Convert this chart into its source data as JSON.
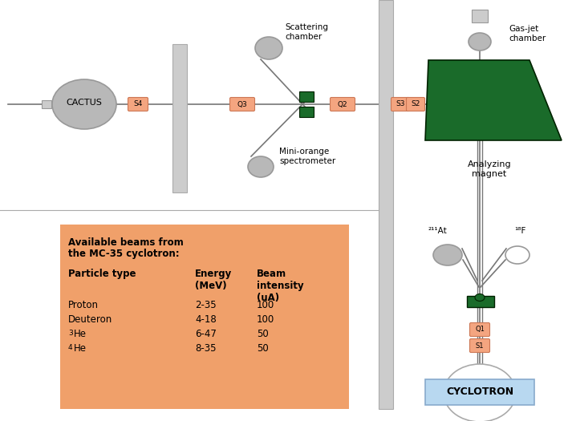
{
  "bg_color": "#ffffff",
  "green_dark": "#1a6b2a",
  "salmon": "#f4a580",
  "salmon_border": "#cc7755",
  "gray_circle": "#b8b8b8",
  "gray_circle2": "#cccccc",
  "light_gray_wall": "#cccccc",
  "wall_edge": "#aaaaaa",
  "cyclotron_fill": "#b8d8f0",
  "line_color": "#777777",
  "cyclotron_text": "CYCLOTRON",
  "cactus_text": "CACTUS",
  "scattering_text": "Scattering\nchamber",
  "mini_orange_text": "Mini-orange\nspectrometer",
  "analyzing_magnet_text": "Analyzing\nmagnet",
  "gas_jet_text": "Gas-jet\nchamber",
  "table_title_line1": "Available beams from",
  "table_title_line2": "the MC-35 cyclotron:",
  "col_header1": "Particle type",
  "col_header2": "Energy\n(MeV)",
  "col_header3": "Beam\nintensity\n(uA)",
  "rows": [
    [
      "Proton",
      "2-35",
      "100"
    ],
    [
      "Deuteron",
      "4-18",
      "100"
    ],
    [
      "3He",
      "6-47",
      "50"
    ],
    [
      "4He",
      "8-35",
      "50"
    ]
  ],
  "table_bg": "#f0a06a"
}
